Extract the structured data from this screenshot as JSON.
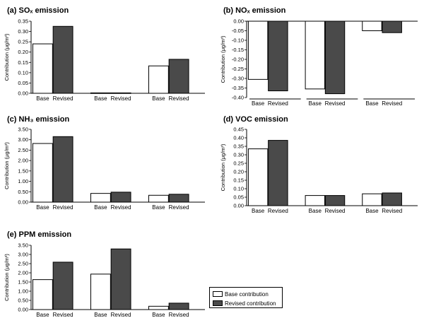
{
  "colors": {
    "base_fill": "#ffffff",
    "revised_fill": "#4a4a4a",
    "stroke": "#000000"
  },
  "legend": {
    "items": [
      {
        "label": "Base contribution",
        "color": "#ffffff"
      },
      {
        "label": "Revised contribution",
        "color": "#4a4a4a"
      }
    ]
  },
  "chart_data": [
    {
      "type": "bar",
      "title": "(a) SOₓ emission",
      "ylabel": "Contribution (μg/m³)",
      "ylim": [
        0,
        0.35
      ],
      "ytick_labels": [
        "0.00",
        "0.05",
        "0.10",
        "0.15",
        "0.20",
        "0.25",
        "0.30",
        "0.35"
      ],
      "categories": [
        "Base",
        "Revised",
        "Base",
        "Revised",
        "Base",
        "Revised"
      ],
      "values": [
        0.24,
        0.325,
        0.002,
        0.002,
        0.133,
        0.165
      ]
    },
    {
      "type": "bar",
      "title": "(b) NOₓ emission",
      "ylabel": "Contribution (μg/m³)",
      "ylim": [
        -0.4,
        0
      ],
      "ytick_labels": [
        "0.00",
        "-0.05",
        "-0.10",
        "-0.15",
        "-0.20",
        "-0.25",
        "-0.30",
        "-0.35",
        "-0.40"
      ],
      "categories": [
        "Base",
        "Revised",
        "Base",
        "Revised",
        "Base",
        "Revised"
      ],
      "values": [
        -0.305,
        -0.365,
        -0.355,
        -0.38,
        -0.05,
        -0.06
      ]
    },
    {
      "type": "bar",
      "title": "(c) NH₃ emission",
      "ylabel": "Contribution (μg/m³)",
      "ylim": [
        0,
        3.5
      ],
      "ytick_labels": [
        "0.00",
        "0.50",
        "1.00",
        "1.50",
        "2.00",
        "2.50",
        "3.00",
        "3.50"
      ],
      "categories": [
        "Base",
        "Revised",
        "Base",
        "Revised",
        "Base",
        "Revised"
      ],
      "values": [
        2.82,
        3.15,
        0.42,
        0.48,
        0.33,
        0.38
      ]
    },
    {
      "type": "bar",
      "title": "(d) VOC emission",
      "ylabel": "Contribution (μg/m³)",
      "ylim": [
        0,
        0.45
      ],
      "ytick_labels": [
        "0.00",
        "0.05",
        "0.10",
        "0.15",
        "0.20",
        "0.25",
        "0.30",
        "0.35",
        "0.40",
        "0.45"
      ],
      "categories": [
        "Base",
        "Revised",
        "Base",
        "Revised",
        "Base",
        "Revised"
      ],
      "values": [
        0.335,
        0.385,
        0.06,
        0.06,
        0.07,
        0.075
      ]
    },
    {
      "type": "bar",
      "title": "(e) PPM emission",
      "ylabel": "Contribution (μg/m³)",
      "ylim": [
        0,
        3.5
      ],
      "ytick_labels": [
        "0.00",
        "0.50",
        "1.00",
        "1.50",
        "2.00",
        "2.50",
        "3.00",
        "3.50"
      ],
      "categories": [
        "Base",
        "Revised",
        "Base",
        "Revised",
        "Base",
        "Revised"
      ],
      "values": [
        1.63,
        2.58,
        1.93,
        3.3,
        0.18,
        0.35
      ]
    }
  ]
}
